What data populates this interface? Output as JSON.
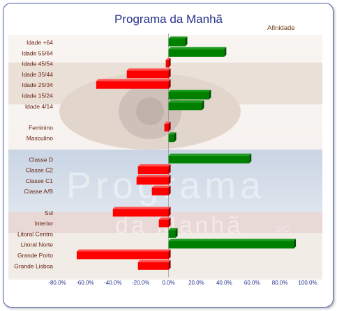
{
  "chart_data": {
    "type": "bar",
    "orientation": "horizontal",
    "title": "Programa da Manhã",
    "legend": "Afinidade",
    "legend_position": "top-right",
    "x_ticks": [
      "-80.0%",
      "-60.0%",
      "-40.0%",
      "-20.0%",
      "0.0%",
      "20.0%",
      "40.0%",
      "60.0%",
      "80.0%",
      "100.0%"
    ],
    "xlim": [
      -80,
      100
    ],
    "value_unit": "%",
    "positive_color": "#008000",
    "negative_color": "#ff0000",
    "background_image_text": [
      "Programa",
      "da Manhã",
      "SIC"
    ],
    "groups": [
      {
        "categories": [
          "Idade +64",
          "Idade 55/64",
          "Idade 45/54",
          "Idade 35/44",
          "Idade 25/34",
          "Idade 15/24",
          "Idade 4/14"
        ],
        "values": [
          12,
          40,
          -2,
          -30,
          -52,
          29,
          24
        ]
      },
      {
        "categories": [
          "Feminino",
          "Masculino"
        ],
        "values": [
          -3,
          4
        ]
      },
      {
        "categories": [
          "Classe D",
          "Classe C2",
          "Classe C1",
          "Classe A/B"
        ],
        "values": [
          58,
          -22,
          -23,
          -12
        ]
      },
      {
        "categories": [
          "Sul",
          "Interior",
          "Litoral Centro",
          "Litoral Norte",
          "Grande Porto",
          "Grande Lisboa"
        ],
        "values": [
          -40,
          -7,
          5,
          90,
          -66,
          -22
        ]
      }
    ]
  }
}
